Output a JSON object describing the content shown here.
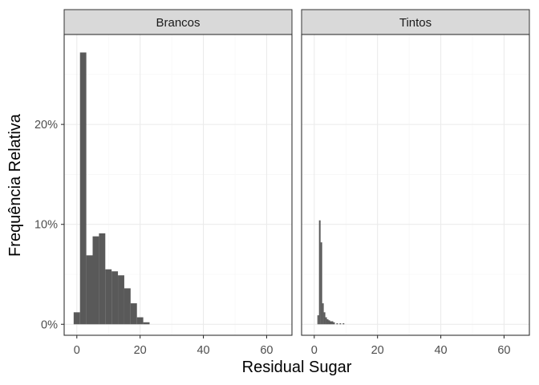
{
  "chart_data": {
    "type": "bar",
    "xlabel": "Residual Sugar",
    "ylabel": "Frequência Relativa",
    "xlim": [
      -4,
      68
    ],
    "ylim": [
      -0.011,
      0.29
    ],
    "x_ticks": [
      0,
      20,
      40,
      60
    ],
    "x_tick_labels": [
      "0",
      "20",
      "40",
      "60"
    ],
    "y_ticks": [
      0,
      0.1,
      0.2
    ],
    "y_tick_labels": [
      "0%",
      "10%",
      "20%"
    ],
    "grid": true,
    "facets": [
      {
        "label": "Brancos",
        "bin_width": 2,
        "bins": [
          {
            "x": 0,
            "value": 0.012
          },
          {
            "x": 2,
            "value": 0.272
          },
          {
            "x": 4,
            "value": 0.069
          },
          {
            "x": 6,
            "value": 0.088
          },
          {
            "x": 8,
            "value": 0.091
          },
          {
            "x": 10,
            "value": 0.055
          },
          {
            "x": 12,
            "value": 0.053
          },
          {
            "x": 14,
            "value": 0.049
          },
          {
            "x": 16,
            "value": 0.036
          },
          {
            "x": 18,
            "value": 0.021
          },
          {
            "x": 20,
            "value": 0.007
          },
          {
            "x": 22,
            "value": 0.002
          }
        ]
      },
      {
        "label": "Tintos",
        "bin_width": 0.5,
        "bins": [
          {
            "x": 1.25,
            "value": 0.009
          },
          {
            "x": 1.75,
            "value": 0.104
          },
          {
            "x": 2.25,
            "value": 0.082
          },
          {
            "x": 2.75,
            "value": 0.021
          },
          {
            "x": 3.25,
            "value": 0.012
          },
          {
            "x": 3.75,
            "value": 0.007
          },
          {
            "x": 4.25,
            "value": 0.005
          },
          {
            "x": 4.75,
            "value": 0.004
          },
          {
            "x": 5.25,
            "value": 0.003
          },
          {
            "x": 5.75,
            "value": 0.003
          },
          {
            "x": 6.25,
            "value": 0.002
          },
          {
            "x": 7.25,
            "value": 0.001
          },
          {
            "x": 8.25,
            "value": 0.001
          },
          {
            "x": 9.25,
            "value": 0.001
          }
        ]
      }
    ],
    "colors": {
      "bar": "#595959",
      "strip_fill": "#d9d9d9",
      "panel_border": "#333333",
      "grid_major": "#ebebeb",
      "grid_minor": "#f5f5f5",
      "tick_text": "#4d4d4d"
    }
  }
}
